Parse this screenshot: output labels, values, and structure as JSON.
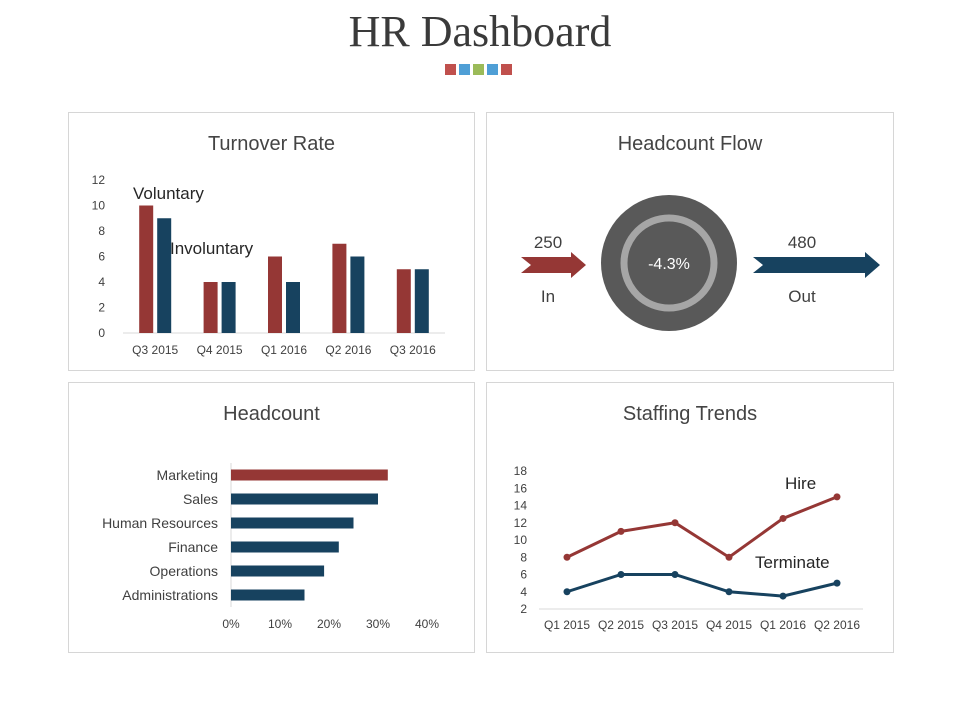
{
  "page_title": "HR Dashboard",
  "accent_squares": [
    "#c0504d",
    "#4f9fd6",
    "#9bbb59",
    "#4f9fd6",
    "#c0504d"
  ],
  "colors": {
    "red": "#953735",
    "blue": "#17425f",
    "gray_ring": "#a6a6a6",
    "gray_disc": "#595959"
  },
  "headcount_flow": {
    "title": "Headcount Flow",
    "in_value": "250",
    "in_label": "In",
    "out_value": "480",
    "out_label": "Out",
    "change": "-4.3%"
  },
  "chart_data": [
    {
      "type": "bar",
      "title": "Turnover Rate",
      "categories": [
        "Q3 2015",
        "Q4 2015",
        "Q1 2016",
        "Q2 2016",
        "Q3 2016"
      ],
      "series": [
        {
          "name": "Voluntary",
          "values": [
            10,
            4,
            6,
            7,
            5
          ]
        },
        {
          "name": "Involuntary",
          "values": [
            9,
            4,
            4,
            6,
            5
          ]
        }
      ],
      "ylim": [
        0,
        12
      ],
      "yticks": [
        0,
        2,
        4,
        6,
        8,
        10,
        12
      ],
      "grid": false
    },
    {
      "type": "bar",
      "orientation": "horizontal",
      "title": "Headcount",
      "categories": [
        "Marketing",
        "Sales",
        "Human Resources",
        "Finance",
        "Operations",
        "Administrations"
      ],
      "values": [
        32,
        30,
        25,
        22,
        19,
        15
      ],
      "xlim": [
        0,
        40
      ],
      "xticks": [
        "0%",
        "10%",
        "20%",
        "30%",
        "40%"
      ],
      "grid": false
    },
    {
      "type": "line",
      "title": "Staffing Trends",
      "categories": [
        "Q1 2015",
        "Q2 2015",
        "Q3 2015",
        "Q4 2015",
        "Q1 2016",
        "Q2 2016"
      ],
      "series": [
        {
          "name": "Hire",
          "values": [
            8,
            11,
            12,
            8,
            12.5,
            15
          ]
        },
        {
          "name": "Terminate",
          "values": [
            4,
            6,
            6,
            4,
            3.5,
            5
          ]
        }
      ],
      "ylim": [
        2,
        18
      ],
      "yticks": [
        2,
        4,
        6,
        8,
        10,
        12,
        14,
        16,
        18
      ],
      "grid": false
    }
  ]
}
